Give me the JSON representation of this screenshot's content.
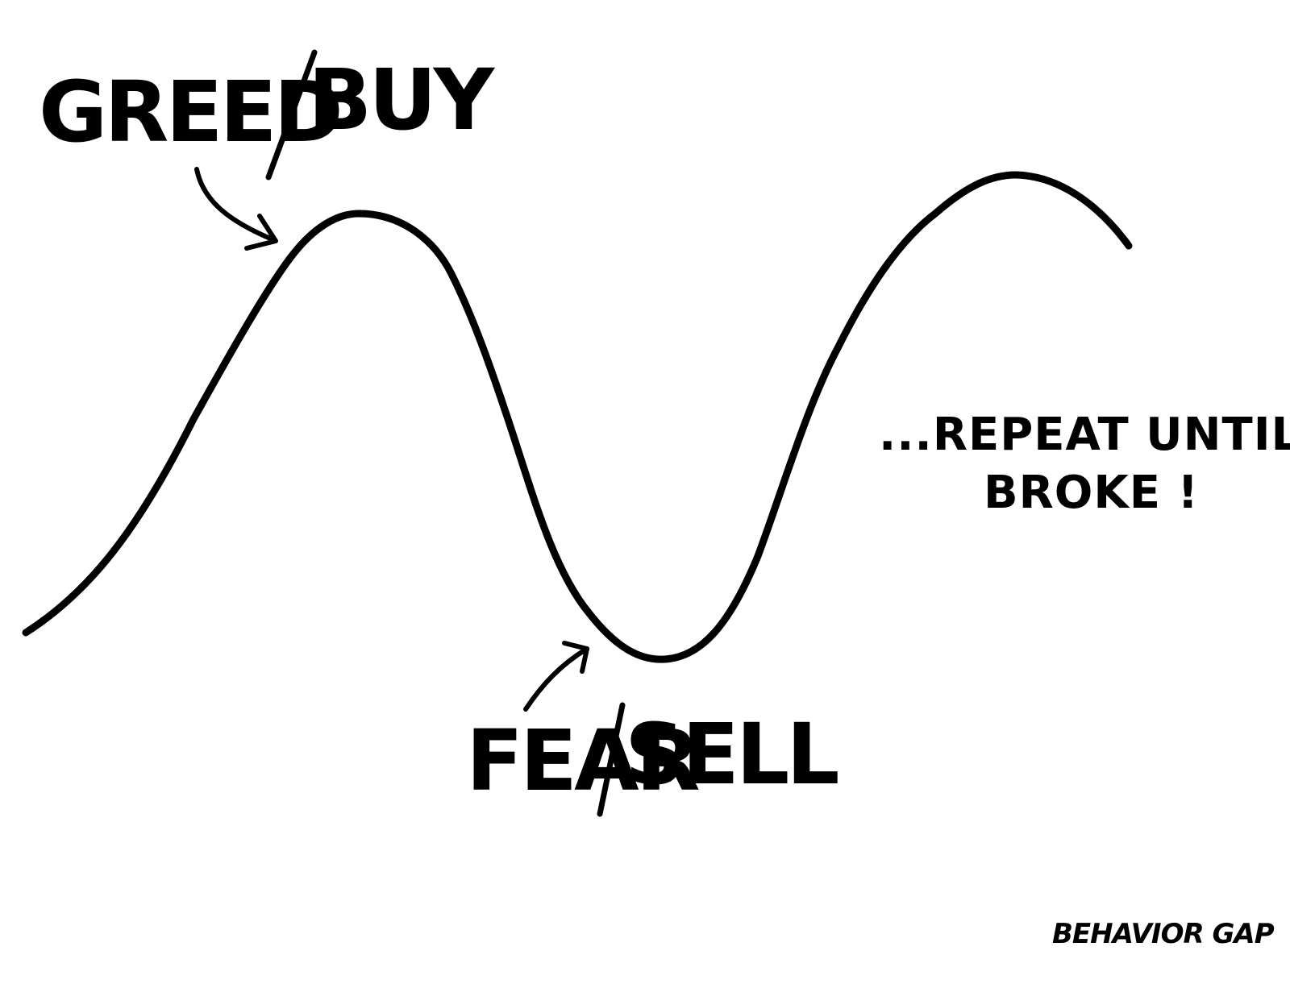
{
  "labels": {
    "greed_left": "GREED",
    "greed_right": "BUY",
    "fear_left": "FEAR",
    "fear_right": "SELL",
    "repeat_line1": "...REPEAT UNTIL",
    "repeat_line2": "BROKE !",
    "signature": "BEHAVIOR GAP"
  },
  "colors": {
    "ink": "#000000",
    "background": "#ffffff"
  }
}
